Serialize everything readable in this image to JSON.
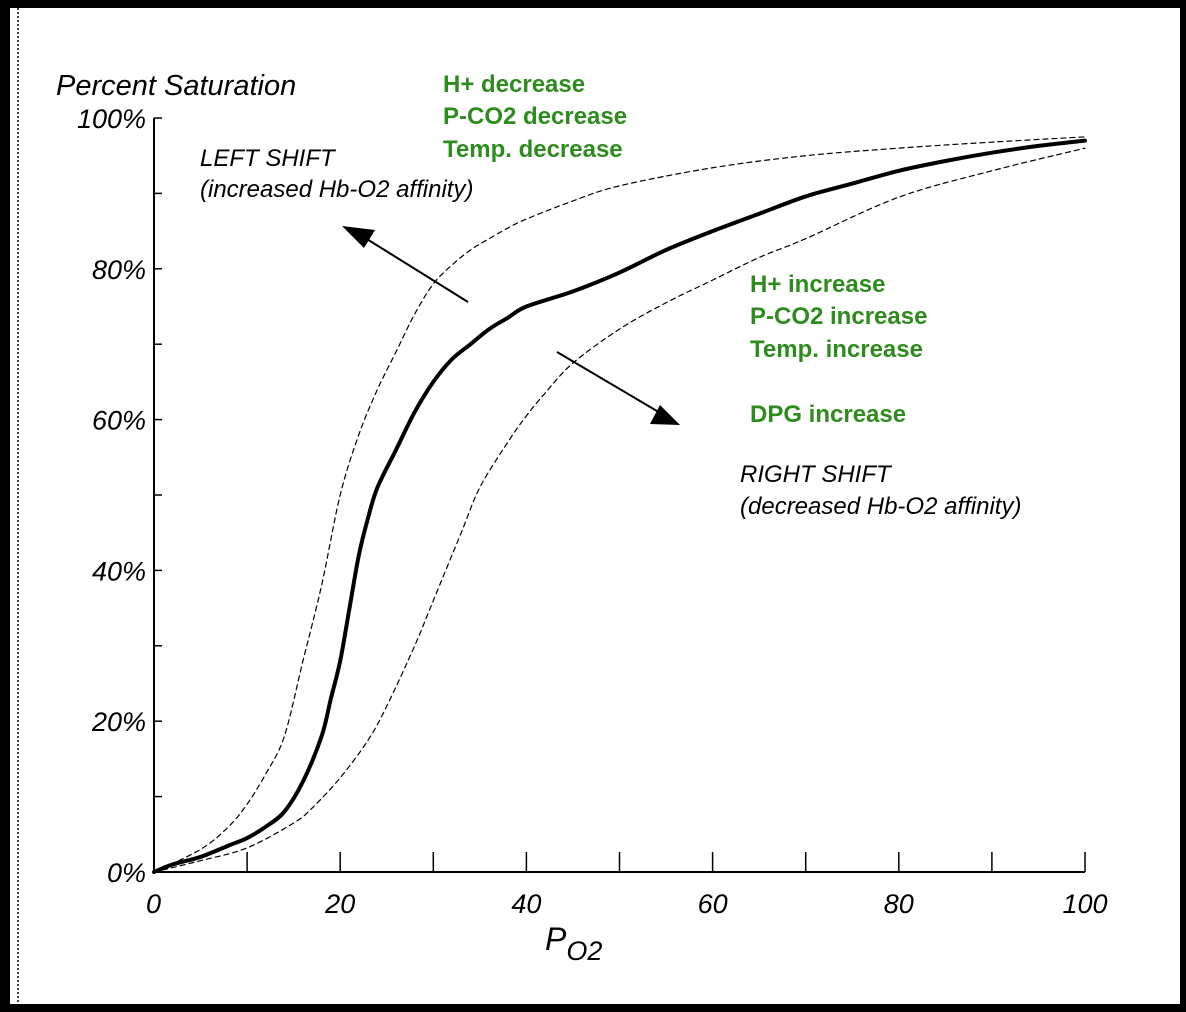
{
  "chart_data": {
    "type": "line",
    "ylabel": "Percent Saturation",
    "xlabel_main": "P",
    "xlabel_sub": "O2",
    "xlim": [
      0,
      100
    ],
    "ylim": [
      0,
      100
    ],
    "x_ticks": [
      "0",
      "20",
      "40",
      "60",
      "80",
      "100"
    ],
    "x_tick_values": [
      0,
      20,
      40,
      60,
      80,
      100
    ],
    "x_minor_ticks": [
      0,
      10,
      20,
      30,
      40,
      50,
      60,
      70,
      80,
      90,
      100
    ],
    "y_ticks": [
      "0%",
      "20%",
      "40%",
      "60%",
      "80%",
      "100%"
    ],
    "y_tick_values": [
      0,
      20,
      40,
      60,
      80,
      100
    ],
    "y_minor_ticks": [
      0,
      10,
      20,
      30,
      40,
      50,
      60,
      70,
      80,
      90,
      100
    ],
    "grid": false,
    "series": [
      {
        "style": "solid",
        "x": [
          0,
          2,
          5,
          8,
          10,
          12,
          14,
          16,
          18,
          19,
          20,
          21,
          22,
          23,
          24,
          26,
          28,
          30,
          32,
          34,
          36,
          38,
          40,
          45,
          50,
          55,
          60,
          65,
          70,
          75,
          80,
          85,
          90,
          95,
          100
        ],
        "y": [
          0,
          1,
          2,
          3.5,
          4.5,
          6,
          8,
          12,
          18,
          23,
          28,
          35,
          42,
          47,
          51,
          56,
          61,
          65,
          68,
          70,
          72,
          73.5,
          75,
          77,
          79.5,
          82.5,
          85,
          87.3,
          89.6,
          91.3,
          93,
          94.3,
          95.4,
          96.3,
          97
        ]
      },
      {
        "style": "dashed",
        "x": [
          0,
          5,
          8,
          10,
          12,
          14,
          16,
          18,
          20,
          22,
          24,
          26,
          28,
          30,
          32,
          34,
          36,
          38,
          40,
          45,
          50,
          60,
          70,
          80,
          90,
          100
        ],
        "y": [
          0,
          3,
          6,
          9,
          13,
          18,
          28,
          38,
          50,
          58,
          64,
          69,
          74,
          78,
          80.5,
          82.5,
          84,
          85.4,
          86.6,
          89,
          91,
          93.4,
          95,
          96,
          96.8,
          97.5
        ]
      },
      {
        "style": "dashed",
        "x": [
          0,
          5,
          10,
          15,
          17,
          20,
          23,
          25,
          28,
          30,
          33,
          35,
          38,
          40,
          42,
          45,
          50,
          55,
          60,
          65,
          70,
          80,
          90,
          100
        ],
        "y": [
          0,
          1.5,
          3.2,
          6.5,
          8.5,
          12.5,
          17.5,
          22,
          30,
          36,
          45,
          51,
          57,
          60.5,
          63.5,
          67.5,
          72,
          75.5,
          78.5,
          81.5,
          84,
          89.5,
          93,
          96
        ]
      }
    ],
    "annotations": {
      "left_effects": [
        "H+ decrease",
        "P-CO2 decrease",
        "Temp. decrease"
      ],
      "left_shift_title": "LEFT SHIFT",
      "left_shift_sub": "(increased Hb-O2 affinity)",
      "right_effects": [
        "H+ increase",
        "P-CO2 increase",
        "Temp. increase"
      ],
      "dpg": "DPG increase",
      "right_shift_title": "RIGHT SHIFT",
      "right_shift_sub": "(decreased Hb-O2 affinity)"
    },
    "colors": {
      "effects_text": "#2e8b1e",
      "curve": "#000000",
      "frame": "#000000"
    }
  }
}
